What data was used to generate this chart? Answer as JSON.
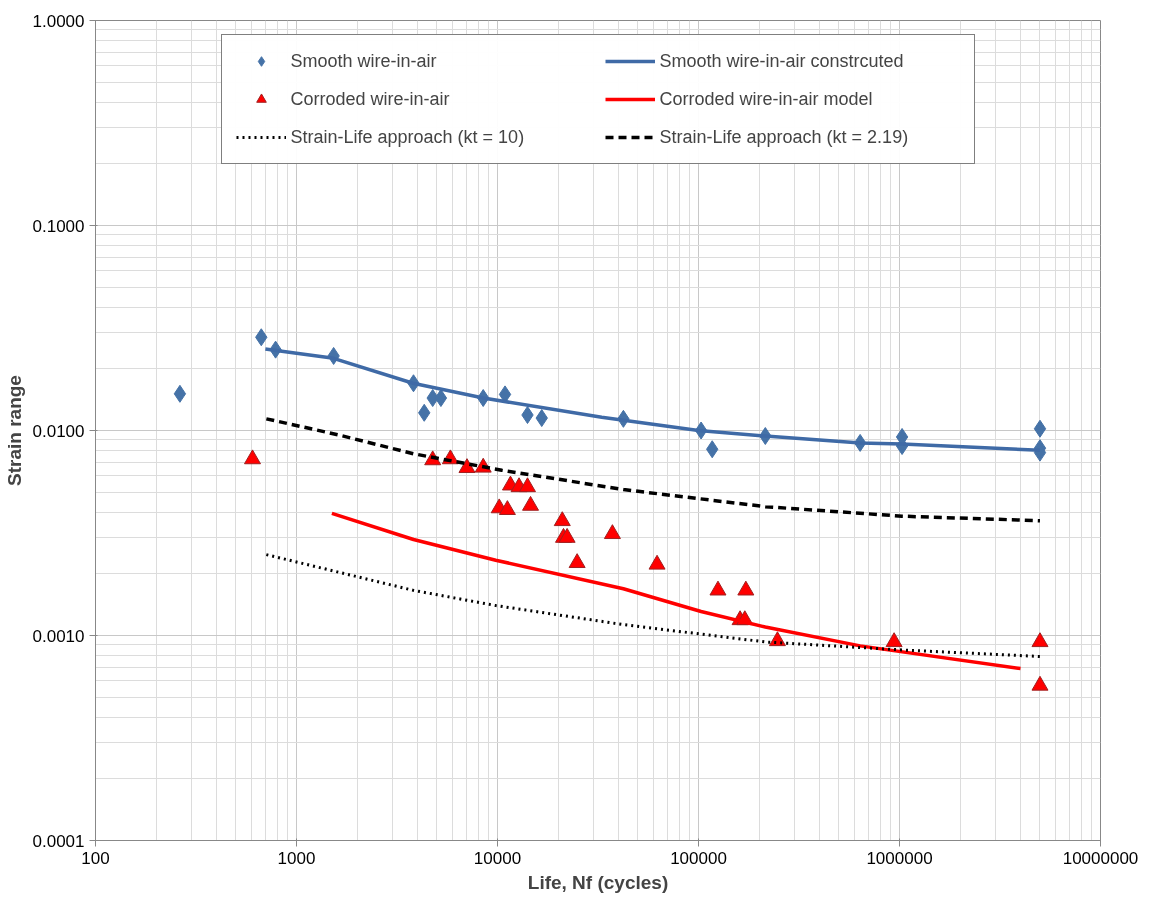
{
  "chart_data": {
    "type": "scatter",
    "xlabel": "Life, Nf (cycles)",
    "ylabel": "Strain range",
    "log": "xy",
    "grid": true,
    "legend": "top",
    "xlim": [
      100,
      10000000
    ],
    "xticks": [
      100,
      1000,
      10000,
      100000,
      1000000,
      10000000
    ],
    "ylim": [
      0.0001,
      1
    ],
    "yticks": [
      {
        "value": 0.0001,
        "label": "0.0001"
      },
      {
        "value": 0.001,
        "label": "0.0010"
      },
      {
        "value": 0.01,
        "label": "0.0100"
      },
      {
        "value": 0.1,
        "label": "0.1000"
      },
      {
        "value": 1,
        "label": "1.0000"
      }
    ],
    "series": [
      {
        "name": "Smooth wire-in-air",
        "marker": "diamond",
        "color": "#4572a7",
        "x": [
          263,
          668,
          787,
          1530,
          3820,
          4320,
          4760,
          5230,
          8490,
          10900,
          14100,
          16600,
          42300,
          103000,
          117000,
          215000,
          637000,
          1030000,
          1030000,
          5000000,
          5000000,
          5000000
        ],
        "values": [
          0.0151,
          0.0285,
          0.0248,
          0.0231,
          0.017,
          0.0122,
          0.0144,
          0.0144,
          0.0144,
          0.015,
          0.0119,
          0.0115,
          0.0114,
          0.01,
          0.0081,
          0.0094,
          0.0087,
          0.0093,
          0.0084,
          0.0102,
          0.0082,
          0.0078
        ]
      },
      {
        "name": "Smooth wire-in-air constrcuted",
        "type": "line",
        "line_style": "solid",
        "color": "#3f6aa6",
        "x": [
          700,
          1000,
          1500,
          3800,
          8500,
          33000,
          100000,
          215000,
          640000,
          1030000,
          5000000
        ],
        "values": [
          0.025,
          0.0238,
          0.0226,
          0.017,
          0.0144,
          0.0116,
          0.01,
          0.0094,
          0.0087,
          0.0086,
          0.008
        ]
      },
      {
        "name": "Corroded wire-in-air",
        "marker": "triangle",
        "color": "#ff0000",
        "x": [
          604,
          4760,
          5830,
          7050,
          8490,
          11600,
          12800,
          14100,
          10200,
          11200,
          14600,
          21000,
          21300,
          22200,
          24900,
          37300,
          62200,
          125000,
          172000,
          161000,
          170000,
          247000,
          940000,
          5000000,
          5000000
        ],
        "values": [
          0.00725,
          0.00717,
          0.00725,
          0.00657,
          0.0066,
          0.0054,
          0.0053,
          0.0053,
          0.00418,
          0.0041,
          0.0043,
          0.00362,
          0.003,
          0.003,
          0.00226,
          0.00313,
          0.00222,
          0.00166,
          0.00166,
          0.00119,
          0.00119,
          0.00094,
          0.00093,
          0.00093,
          0.00057
        ]
      },
      {
        "name": "Corroded wire-in-air model",
        "type": "line",
        "line_style": "solid",
        "color": "#ff0000",
        "x": [
          1500,
          3820,
          9800,
          42300,
          103000,
          215000,
          637000,
          4000000
        ],
        "values": [
          0.00394,
          0.00294,
          0.00233,
          0.00169,
          0.00131,
          0.0011,
          0.00089,
          0.00069
        ]
      },
      {
        "name": "Strain-Life approach (kt = 10)",
        "type": "line",
        "line_style": "dotted",
        "color": "#000000",
        "x": [
          708,
          3820,
          9800,
          42300,
          215000,
          1030000,
          5000000
        ],
        "values": [
          0.00248,
          0.00166,
          0.0014,
          0.00113,
          0.00093,
          0.00085,
          0.00079
        ]
      },
      {
        "name": "Strain-Life approach (kt = 2.19)",
        "type": "line",
        "line_style": "dashed",
        "color": "#000000",
        "x": [
          708,
          1630,
          3820,
          10500,
          42300,
          215000,
          1030000,
          5000000
        ],
        "values": [
          0.0114,
          0.0095,
          0.0077,
          0.0064,
          0.00515,
          0.00425,
          0.00382,
          0.00363
        ]
      }
    ]
  }
}
